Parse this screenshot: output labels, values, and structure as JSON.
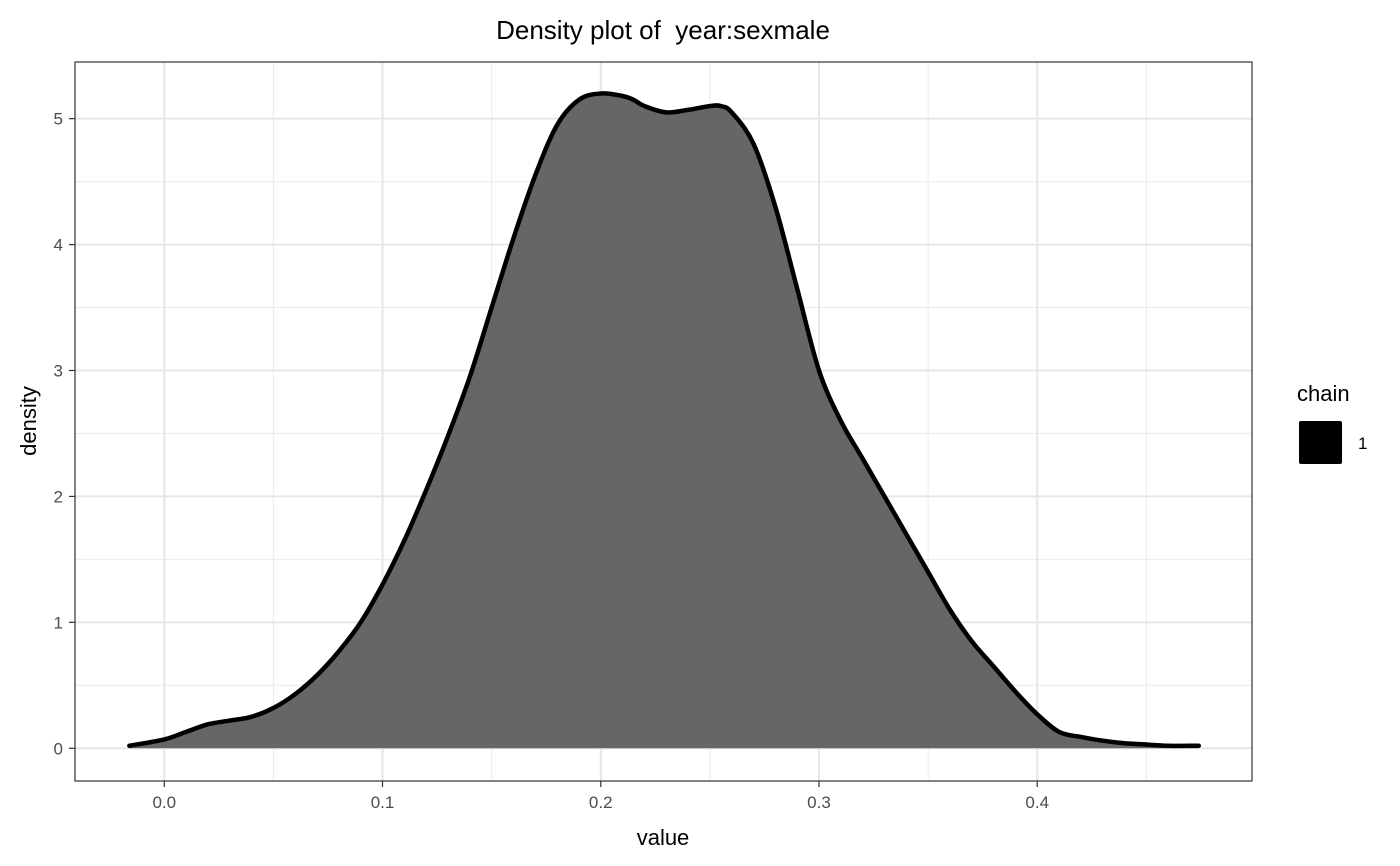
{
  "chart_data": {
    "type": "area",
    "title": "Density plot of  year:sexmale",
    "xlabel": "value",
    "ylabel": "density",
    "xlim": [
      -0.0409,
      0.4984
    ],
    "ylim": [
      -0.26,
      5.45
    ],
    "x_ticks": [
      0.0,
      0.1,
      0.2,
      0.3,
      0.4
    ],
    "x_tick_labels": [
      "0.0",
      "0.1",
      "0.2",
      "0.3",
      "0.4"
    ],
    "y_ticks": [
      0,
      1,
      2,
      3,
      4,
      5
    ],
    "y_tick_labels": [
      "0",
      "1",
      "2",
      "3",
      "4",
      "5"
    ],
    "grid": true,
    "legend": {
      "title": "chain",
      "placement": "right",
      "entries": [
        {
          "label": "1",
          "color": "#000000"
        }
      ]
    },
    "series": [
      {
        "name": "1",
        "fill_color": "#666666",
        "line_color": "#000000",
        "x": [
          -0.016,
          0.0,
          0.01,
          0.02,
          0.03,
          0.04,
          0.05,
          0.06,
          0.07,
          0.08,
          0.09,
          0.1,
          0.11,
          0.12,
          0.13,
          0.14,
          0.15,
          0.16,
          0.17,
          0.18,
          0.19,
          0.2,
          0.21,
          0.215,
          0.22,
          0.23,
          0.24,
          0.25,
          0.255,
          0.26,
          0.27,
          0.28,
          0.29,
          0.3,
          0.31,
          0.32,
          0.33,
          0.34,
          0.35,
          0.36,
          0.37,
          0.38,
          0.39,
          0.4,
          0.41,
          0.42,
          0.43,
          0.44,
          0.45,
          0.46,
          0.474
        ],
        "y": [
          0.02,
          0.07,
          0.13,
          0.19,
          0.22,
          0.25,
          0.32,
          0.43,
          0.58,
          0.77,
          1.0,
          1.3,
          1.65,
          2.05,
          2.48,
          2.95,
          3.5,
          4.05,
          4.55,
          4.95,
          5.15,
          5.2,
          5.18,
          5.15,
          5.1,
          5.05,
          5.07,
          5.1,
          5.1,
          5.05,
          4.8,
          4.3,
          3.65,
          3.0,
          2.6,
          2.3,
          2.0,
          1.7,
          1.4,
          1.1,
          0.85,
          0.65,
          0.45,
          0.27,
          0.13,
          0.09,
          0.06,
          0.04,
          0.03,
          0.02,
          0.02
        ]
      }
    ]
  }
}
